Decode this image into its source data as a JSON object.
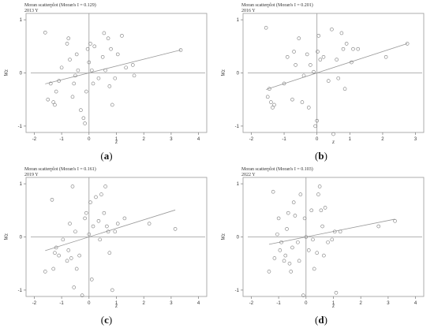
{
  "chart_data": [
    {
      "type": "scatter",
      "panel_id": "a",
      "title": "Moran scatterplot (Moran's I = 0.129)",
      "subtitle": "2013 Y",
      "caption": "a",
      "xlabel": "z",
      "ylabel": "Wz",
      "xlim": [
        -2,
        4
      ],
      "ylim": [
        -1,
        1
      ],
      "xticks": [
        -2,
        -1,
        0,
        1,
        2,
        3,
        4
      ],
      "yticks": [
        -1,
        0,
        1
      ],
      "slope": 0.129,
      "points": [
        [
          -1.6,
          0.76
        ],
        [
          -1.5,
          -0.5
        ],
        [
          -1.4,
          -0.2
        ],
        [
          -1.3,
          -0.55
        ],
        [
          -1.25,
          -0.6
        ],
        [
          -1.2,
          -0.35
        ],
        [
          -1.1,
          -0.15
        ],
        [
          -1.0,
          0.1
        ],
        [
          -0.8,
          0.55
        ],
        [
          -0.75,
          0.65
        ],
        [
          -0.7,
          0.25
        ],
        [
          -0.6,
          -0.45
        ],
        [
          -0.55,
          -0.2
        ],
        [
          -0.5,
          -0.05
        ],
        [
          -0.45,
          0.35
        ],
        [
          -0.4,
          0.05
        ],
        [
          -0.3,
          -0.7
        ],
        [
          -0.2,
          -0.85
        ],
        [
          -0.15,
          -0.95
        ],
        [
          -0.1,
          -0.35
        ],
        [
          -0.05,
          0.45
        ],
        [
          0.0,
          0.2
        ],
        [
          0.05,
          0.55
        ],
        [
          0.1,
          0.05
        ],
        [
          0.15,
          -0.2
        ],
        [
          0.2,
          0.5
        ],
        [
          0.35,
          -0.1
        ],
        [
          0.5,
          0.3
        ],
        [
          0.55,
          0.75
        ],
        [
          0.6,
          0.05
        ],
        [
          0.7,
          0.65
        ],
        [
          0.75,
          -0.25
        ],
        [
          0.8,
          0.45
        ],
        [
          0.85,
          -0.6
        ],
        [
          0.95,
          -0.1
        ],
        [
          1.05,
          0.35
        ],
        [
          1.2,
          0.7
        ],
        [
          1.35,
          0.1
        ],
        [
          1.6,
          0.15
        ],
        [
          1.65,
          -0.05
        ],
        [
          3.35,
          0.43
        ]
      ]
    },
    {
      "type": "scatter",
      "panel_id": "b",
      "title": "Moran scatterplot (Moran's I = 0.201)",
      "subtitle": "2016 Y",
      "caption": "b",
      "xlabel": "z",
      "ylabel": "Wz",
      "xlim": [
        -2,
        3
      ],
      "ylim": [
        -1,
        1
      ],
      "xticks": [
        -2,
        -1,
        0,
        1,
        2,
        3
      ],
      "yticks": [
        -1,
        0,
        1
      ],
      "slope": 0.201,
      "points": [
        [
          -1.55,
          0.85
        ],
        [
          -1.5,
          -0.45
        ],
        [
          -1.45,
          -0.3
        ],
        [
          -1.4,
          -0.55
        ],
        [
          -1.35,
          -0.65
        ],
        [
          -1.3,
          -0.6
        ],
        [
          -1.0,
          -0.2
        ],
        [
          -0.9,
          0.3
        ],
        [
          -0.75,
          -0.5
        ],
        [
          -0.7,
          0.4
        ],
        [
          -0.65,
          0.15
        ],
        [
          -0.55,
          0.65
        ],
        [
          -0.45,
          -0.55
        ],
        [
          -0.4,
          -0.05
        ],
        [
          -0.3,
          0.35
        ],
        [
          -0.25,
          -0.65
        ],
        [
          -0.2,
          0.15
        ],
        [
          -0.1,
          0.02
        ],
        [
          -0.05,
          -1.0
        ],
        [
          0.0,
          -0.9
        ],
        [
          0.02,
          0.4
        ],
        [
          0.05,
          0.7
        ],
        [
          0.1,
          0.25
        ],
        [
          0.2,
          0.3
        ],
        [
          0.35,
          -0.15
        ],
        [
          0.45,
          0.82
        ],
        [
          0.5,
          -1.15
        ],
        [
          0.6,
          0.25
        ],
        [
          0.65,
          -0.1
        ],
        [
          0.75,
          0.75
        ],
        [
          0.8,
          0.45
        ],
        [
          0.85,
          -0.3
        ],
        [
          0.9,
          0.55
        ],
        [
          1.05,
          0.2
        ],
        [
          1.1,
          0.45
        ],
        [
          1.25,
          0.45
        ],
        [
          2.1,
          0.3
        ],
        [
          2.75,
          0.55
        ]
      ]
    },
    {
      "type": "scatter",
      "panel_id": "c",
      "title": "Moran scatterplot (Moran's I = 0.161)",
      "subtitle": "2019 Y",
      "caption": "c",
      "xlabel": "z",
      "ylabel": "Wz",
      "xlim": [
        -2,
        4
      ],
      "ylim": [
        -1,
        1
      ],
      "xticks": [
        -2,
        -1,
        0,
        1,
        2,
        3,
        4
      ],
      "yticks": [
        -1,
        0,
        1
      ],
      "slope": 0.161,
      "points": [
        [
          -1.6,
          -0.65
        ],
        [
          -1.35,
          0.7
        ],
        [
          -1.3,
          -0.6
        ],
        [
          -1.25,
          -0.3
        ],
        [
          -1.2,
          -0.2
        ],
        [
          -1.1,
          -0.35
        ],
        [
          -0.95,
          -0.05
        ],
        [
          -0.8,
          -0.45
        ],
        [
          -0.75,
          -0.25
        ],
        [
          -0.7,
          0.25
        ],
        [
          -0.65,
          -0.4
        ],
        [
          -0.6,
          0.95
        ],
        [
          -0.55,
          -0.95
        ],
        [
          -0.5,
          0.1
        ],
        [
          -0.45,
          -0.6
        ],
        [
          -0.35,
          -0.35
        ],
        [
          -0.25,
          -1.1
        ],
        [
          -0.15,
          0.35
        ],
        [
          -0.1,
          0.45
        ],
        [
          0.0,
          0.05
        ],
        [
          0.05,
          0.65
        ],
        [
          0.1,
          -0.8
        ],
        [
          0.15,
          0.2
        ],
        [
          0.25,
          0.75
        ],
        [
          0.35,
          0.3
        ],
        [
          0.4,
          -0.05
        ],
        [
          0.45,
          0.8
        ],
        [
          0.55,
          0.45
        ],
        [
          0.6,
          0.95
        ],
        [
          0.65,
          0.2
        ],
        [
          0.7,
          0.1
        ],
        [
          0.75,
          -0.3
        ],
        [
          0.85,
          -1.0
        ],
        [
          0.95,
          0.1
        ],
        [
          1.05,
          0.25
        ],
        [
          1.3,
          0.35
        ],
        [
          2.2,
          0.25
        ],
        [
          3.15,
          0.15
        ]
      ]
    },
    {
      "type": "scatter",
      "panel_id": "d",
      "title": "Moran scatterplot (Moran's I = 0.103)",
      "subtitle": "2022 Y",
      "caption": "d",
      "xlabel": "z",
      "ylabel": "Wz",
      "xlim": [
        -2,
        4
      ],
      "ylim": [
        -1,
        1
      ],
      "xticks": [
        -2,
        -1,
        0,
        1,
        2,
        3,
        4
      ],
      "yticks": [
        -1,
        0,
        1
      ],
      "slope": 0.103,
      "points": [
        [
          -1.35,
          -0.65
        ],
        [
          -1.2,
          0.85
        ],
        [
          -1.15,
          -0.4
        ],
        [
          -1.05,
          0.05
        ],
        [
          -1.0,
          0.35
        ],
        [
          -0.95,
          -0.25
        ],
        [
          -0.9,
          -0.1
        ],
        [
          -0.8,
          -0.45
        ],
        [
          -0.75,
          -0.35
        ],
        [
          -0.7,
          0.15
        ],
        [
          -0.65,
          0.45
        ],
        [
          -0.6,
          -0.5
        ],
        [
          -0.55,
          -0.65
        ],
        [
          -0.5,
          -0.2
        ],
        [
          -0.45,
          0.65
        ],
        [
          -0.4,
          0.4
        ],
        [
          -0.3,
          -0.1
        ],
        [
          -0.25,
          -0.45
        ],
        [
          -0.2,
          0.8
        ],
        [
          -0.1,
          -1.1
        ],
        [
          -0.05,
          0.35
        ],
        [
          0.0,
          0.0
        ],
        [
          0.1,
          -0.25
        ],
        [
          0.2,
          0.5
        ],
        [
          0.25,
          -0.05
        ],
        [
          0.3,
          -0.6
        ],
        [
          0.4,
          -0.3
        ],
        [
          0.45,
          0.8
        ],
        [
          0.5,
          0.95
        ],
        [
          0.55,
          0.5
        ],
        [
          0.6,
          0.2
        ],
        [
          0.65,
          -0.35
        ],
        [
          0.7,
          0.55
        ],
        [
          0.8,
          -0.1
        ],
        [
          0.95,
          -0.05
        ],
        [
          1.05,
          0.1
        ],
        [
          1.1,
          -1.05
        ],
        [
          1.25,
          0.1
        ],
        [
          2.65,
          0.2
        ],
        [
          3.25,
          0.3
        ]
      ]
    }
  ]
}
